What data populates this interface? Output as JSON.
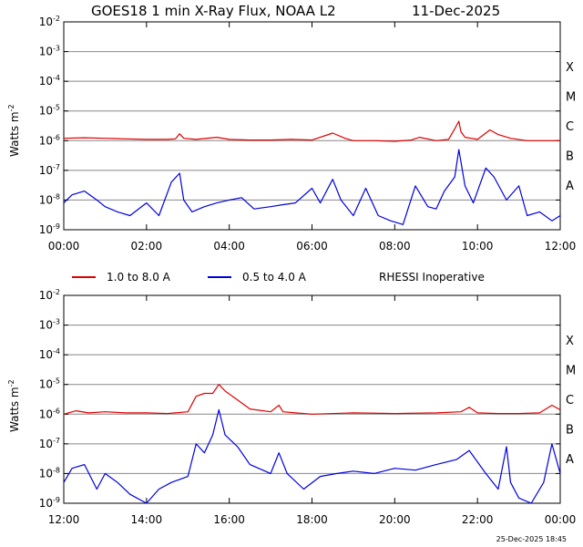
{
  "title": "GOES18 1 min X-Ray Flux, NOAA L2",
  "date": "11-Dec-2025",
  "ylabel_main": "Watts m",
  "ylabel_exp": "-2",
  "legend": {
    "long_label": "1.0 to 8.0 A",
    "short_label": "0.5 to 4.0 A",
    "note": "RHESSI Inoperative"
  },
  "footer": "25-Dec-2025 18:45",
  "colors": {
    "long": "#e00000",
    "short": "#0000e0",
    "grid": "#000000"
  },
  "y_axis": {
    "scale": "log",
    "ylim": [
      1e-09,
      0.01
    ],
    "ticks": [
      {
        "base": "10",
        "exp": "-2"
      },
      {
        "base": "10",
        "exp": "-3"
      },
      {
        "base": "10",
        "exp": "-4"
      },
      {
        "base": "10",
        "exp": "-5"
      },
      {
        "base": "10",
        "exp": "-6"
      },
      {
        "base": "10",
        "exp": "-7"
      },
      {
        "base": "10",
        "exp": "-8"
      },
      {
        "base": "10",
        "exp": "-9"
      }
    ],
    "classes": [
      "X",
      "M",
      "C",
      "B",
      "A"
    ]
  },
  "chart_data": [
    {
      "type": "line",
      "x_unit": "hours UT",
      "xlim": [
        0,
        12
      ],
      "xticks": [
        "00:00",
        "02:00",
        "04:00",
        "06:00",
        "08:00",
        "10:00",
        "12:00"
      ],
      "grid": true,
      "series": [
        {
          "name": "1.0 to 8.0 A",
          "x": [
            0,
            0.5,
            1,
            1.5,
            2,
            2.5,
            2.7,
            2.8,
            2.9,
            3.2,
            3.7,
            4,
            4.5,
            5,
            5.5,
            6,
            6.5,
            6.8,
            7,
            7.5,
            8,
            8.4,
            8.6,
            9,
            9.3,
            9.45,
            9.55,
            9.6,
            9.7,
            9.85,
            10,
            10.3,
            10.5,
            10.8,
            11.2,
            11.6,
            12
          ],
          "y": [
            1.2e-06,
            1.25e-06,
            1.2e-06,
            1.15e-06,
            1.1e-06,
            1.1e-06,
            1.15e-06,
            1.7e-06,
            1.2e-06,
            1.1e-06,
            1.3e-06,
            1.1e-06,
            1.05e-06,
            1.05e-06,
            1.1e-06,
            1.05e-06,
            1.8e-06,
            1.2e-06,
            1e-06,
            1e-06,
            9.5e-07,
            1.05e-06,
            1.3e-06,
            1e-06,
            1.1e-06,
            2.5e-06,
            4.5e-06,
            2e-06,
            1.3e-06,
            1.2e-06,
            1.1e-06,
            2.3e-06,
            1.6e-06,
            1.2e-06,
            1e-06,
            1e-06,
            1e-06
          ]
        },
        {
          "name": "0.5 to 4.0 A",
          "x": [
            0,
            0.2,
            0.5,
            0.8,
            1,
            1.3,
            1.6,
            2,
            2.3,
            2.6,
            2.8,
            2.9,
            3.1,
            3.4,
            3.7,
            4,
            4.3,
            4.6,
            5,
            5.3,
            5.6,
            6,
            6.2,
            6.5,
            6.7,
            7,
            7.3,
            7.6,
            7.9,
            8.2,
            8.5,
            8.8,
            9,
            9.2,
            9.45,
            9.55,
            9.7,
            9.9,
            10.2,
            10.4,
            10.7,
            11,
            11.2,
            11.5,
            11.8,
            12
          ],
          "y": [
            8e-09,
            1.5e-08,
            2e-08,
            1e-08,
            6e-09,
            4e-09,
            3e-09,
            8e-09,
            3e-09,
            4e-08,
            8e-08,
            1e-08,
            4e-09,
            6e-09,
            8e-09,
            1e-08,
            1.2e-08,
            5e-09,
            6e-09,
            7e-09,
            8e-09,
            2.5e-08,
            8e-09,
            5e-08,
            1e-08,
            3e-09,
            2.5e-08,
            3e-09,
            2e-09,
            1.5e-09,
            3e-08,
            6e-09,
            5e-09,
            2e-08,
            6e-08,
            5e-07,
            3e-08,
            8e-09,
            1.2e-07,
            6e-08,
            1e-08,
            3e-08,
            3e-09,
            4e-09,
            2e-09,
            3e-09
          ]
        }
      ]
    },
    {
      "type": "line",
      "x_unit": "hours UT",
      "xlim": [
        12,
        24
      ],
      "xticks": [
        "12:00",
        "14:00",
        "16:00",
        "18:00",
        "20:00",
        "22:00",
        "00:00"
      ],
      "grid": true,
      "series": [
        {
          "name": "1.0 to 8.0 A",
          "x": [
            12,
            12.3,
            12.6,
            13,
            13.5,
            14,
            14.5,
            15,
            15.2,
            15.4,
            15.6,
            15.75,
            15.9,
            16.2,
            16.5,
            17,
            17.2,
            17.3,
            17.6,
            18,
            19,
            20,
            21,
            21.6,
            21.8,
            22,
            22.5,
            23,
            23.5,
            23.8,
            24
          ],
          "y": [
            1e-06,
            1.3e-06,
            1.1e-06,
            1.2e-06,
            1.1e-06,
            1.1e-06,
            1.05e-06,
            1.2e-06,
            4e-06,
            5e-06,
            5e-06,
            1e-05,
            6e-06,
            3e-06,
            1.5e-06,
            1.2e-06,
            2e-06,
            1.2e-06,
            1.1e-06,
            1e-06,
            1.1e-06,
            1.05e-06,
            1.1e-06,
            1.2e-06,
            1.7e-06,
            1.1e-06,
            1.05e-06,
            1.05e-06,
            1.1e-06,
            2e-06,
            1.4e-06
          ]
        },
        {
          "name": "0.5 to 4.0 A",
          "x": [
            12,
            12.2,
            12.5,
            12.8,
            13,
            13.3,
            13.6,
            14,
            14.3,
            14.6,
            15,
            15.2,
            15.4,
            15.6,
            15.75,
            15.9,
            16.2,
            16.5,
            17,
            17.2,
            17.4,
            17.8,
            18.2,
            18.6,
            19,
            19.5,
            20,
            20.5,
            21,
            21.5,
            21.8,
            22.2,
            22.5,
            22.7,
            22.8,
            23,
            23.3,
            23.6,
            23.8,
            24
          ],
          "y": [
            5e-09,
            1.5e-08,
            2e-08,
            3e-09,
            1e-08,
            5e-09,
            2e-09,
            1e-09,
            3e-09,
            5e-09,
            8e-09,
            1e-07,
            5e-08,
            2e-07,
            1.4e-06,
            2e-07,
            8e-08,
            2e-08,
            1e-08,
            5e-08,
            1e-08,
            3e-09,
            8e-09,
            1e-08,
            1.2e-08,
            1e-08,
            1.5e-08,
            1.3e-08,
            2e-08,
            3e-08,
            6e-08,
            1e-08,
            3e-09,
            8e-08,
            5e-09,
            1.5e-09,
            1e-09,
            5e-09,
            1e-07,
            1e-08
          ]
        }
      ]
    }
  ]
}
